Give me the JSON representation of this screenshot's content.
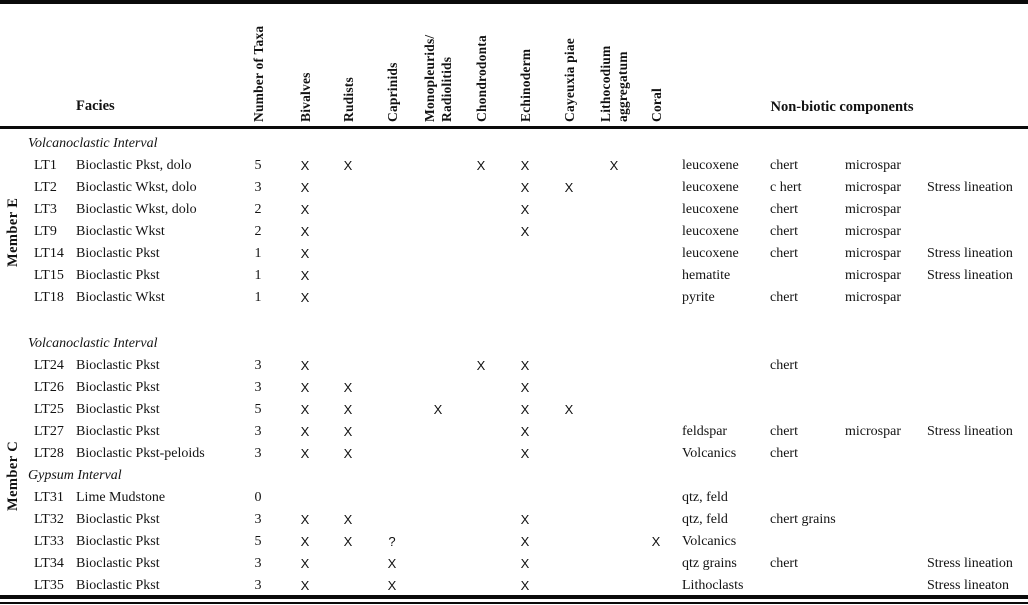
{
  "table": {
    "facies_label": "Facies",
    "nonbiotic_label": "Non-biotic components",
    "mark_symbol": "X",
    "species_columns": [
      "Number of Taxa",
      "Bivalves",
      "Rudists",
      "Caprinids",
      "Monopleurids/\nRadiolitids",
      "Chondrodonta",
      "Echinoderm",
      "Cayeuxia piae",
      "Lithocodium\naggregatum",
      "Coral"
    ],
    "members": [
      {
        "label": "Member E",
        "blocks": [
          {
            "title": "Volcanoclastic Interval",
            "rows": [
              {
                "id": "LT1",
                "facies": "Bioclastic Pkst, dolo",
                "taxa": "5",
                "marks": [
                  "X",
                  "X",
                  "",
                  "",
                  "X",
                  "X",
                  "",
                  "X",
                  ""
                ],
                "nonbiotic": [
                  "leucoxene",
                  "chert",
                  "microspar",
                  ""
                ]
              },
              {
                "id": "LT2",
                "facies": "Bioclastic Wkst, dolo",
                "taxa": "3",
                "marks": [
                  "X",
                  "",
                  "",
                  "",
                  "",
                  "X",
                  "X",
                  "",
                  ""
                ],
                "nonbiotic": [
                  "leucoxene",
                  "c hert",
                  "microspar",
                  "Stress lineation"
                ]
              },
              {
                "id": "LT3",
                "facies": "Bioclastic Wkst, dolo",
                "taxa": "2",
                "marks": [
                  "X",
                  "",
                  "",
                  "",
                  "",
                  "X",
                  "",
                  "",
                  ""
                ],
                "nonbiotic": [
                  "leucoxene",
                  "chert",
                  "microspar",
                  ""
                ]
              },
              {
                "id": "LT9",
                "facies": "Bioclastic Wkst",
                "taxa": "2",
                "marks": [
                  "X",
                  "",
                  "",
                  "",
                  "",
                  "X",
                  "",
                  "",
                  ""
                ],
                "nonbiotic": [
                  "leucoxene",
                  "chert",
                  "microspar",
                  ""
                ]
              },
              {
                "id": "LT14",
                "facies": "Bioclastic Pkst",
                "taxa": "1",
                "marks": [
                  "X",
                  "",
                  "",
                  "",
                  "",
                  "",
                  "",
                  "",
                  ""
                ],
                "nonbiotic": [
                  "leucoxene",
                  "chert",
                  "microspar",
                  "Stress lineation"
                ]
              },
              {
                "id": "LT15",
                "facies": "Bioclastic Pkst",
                "taxa": "1",
                "marks": [
                  "X",
                  "",
                  "",
                  "",
                  "",
                  "",
                  "",
                  "",
                  ""
                ],
                "nonbiotic": [
                  "hematite",
                  "",
                  "microspar",
                  "Stress lineation"
                ]
              },
              {
                "id": "LT18",
                "facies": "Bioclastic Wkst",
                "taxa": "1",
                "marks": [
                  "X",
                  "",
                  "",
                  "",
                  "",
                  "",
                  "",
                  "",
                  ""
                ],
                "nonbiotic": [
                  "pyrite",
                  "chert",
                  "microspar",
                  ""
                ]
              }
            ]
          }
        ]
      },
      {
        "label": "Member C",
        "blocks": [
          {
            "title": "Volcanoclastic Interval",
            "rows": [
              {
                "id": "LT24",
                "facies": "Bioclastic Pkst",
                "taxa": "3",
                "marks": [
                  "X",
                  "",
                  "",
                  "",
                  "X",
                  "X",
                  "",
                  "",
                  ""
                ],
                "nonbiotic": [
                  "",
                  "chert",
                  "",
                  ""
                ]
              },
              {
                "id": "LT26",
                "facies": "Bioclastic Pkst",
                "taxa": "3",
                "marks": [
                  "X",
                  "X",
                  "",
                  "",
                  "",
                  "X",
                  "",
                  "",
                  ""
                ],
                "nonbiotic": [
                  "",
                  "",
                  "",
                  ""
                ]
              },
              {
                "id": "LT25",
                "facies": "Bioclastic Pkst",
                "taxa": "5",
                "marks": [
                  "X",
                  "X",
                  "",
                  "X",
                  "",
                  "X",
                  "X",
                  "",
                  ""
                ],
                "nonbiotic": [
                  "",
                  "",
                  "",
                  ""
                ]
              },
              {
                "id": "LT27",
                "facies": "Bioclastic Pkst",
                "taxa": "3",
                "marks": [
                  "X",
                  "X",
                  "",
                  "",
                  "",
                  "X",
                  "",
                  "",
                  ""
                ],
                "nonbiotic": [
                  "feldspar",
                  "chert",
                  "microspar",
                  "Stress lineation"
                ]
              },
              {
                "id": "LT28",
                "facies": "Bioclastic Pkst-peloids",
                "taxa": "3",
                "marks": [
                  "X",
                  "X",
                  "",
                  "",
                  "",
                  "X",
                  "",
                  "",
                  ""
                ],
                "nonbiotic": [
                  "Volcanics",
                  "chert",
                  "",
                  ""
                ]
              }
            ]
          },
          {
            "title": "Gypsum Interval",
            "rows": [
              {
                "id": "LT31",
                "facies": "Lime Mudstone",
                "taxa": "0",
                "marks": [
                  "",
                  "",
                  "",
                  "",
                  "",
                  "",
                  "",
                  "",
                  ""
                ],
                "nonbiotic": [
                  "qtz, feld",
                  "",
                  "",
                  ""
                ]
              },
              {
                "id": "LT32",
                "facies": "Bioclastic Pkst",
                "taxa": "3",
                "marks": [
                  "X",
                  "X",
                  "",
                  "",
                  "",
                  "X",
                  "",
                  "",
                  ""
                ],
                "nonbiotic": [
                  "qtz, feld",
                  "chert grains",
                  "",
                  ""
                ]
              },
              {
                "id": "LT33",
                "facies": "Bioclastic Pkst",
                "taxa": "5",
                "marks": [
                  "X",
                  "X",
                  "?",
                  "",
                  "",
                  "X",
                  "",
                  "",
                  "X"
                ],
                "nonbiotic": [
                  "Volcanics",
                  "",
                  "",
                  ""
                ]
              },
              {
                "id": "LT34",
                "facies": "Bioclastic Pkst",
                "taxa": "3",
                "marks": [
                  "X",
                  "",
                  "X",
                  "",
                  "",
                  "X",
                  "",
                  "",
                  ""
                ],
                "nonbiotic": [
                  "qtz grains",
                  "chert",
                  "",
                  "Stress lineation"
                ]
              },
              {
                "id": "LT35",
                "facies": "Bioclastic Pkst",
                "taxa": "3",
                "marks": [
                  "X",
                  "",
                  "X",
                  "",
                  "",
                  "X",
                  "",
                  "",
                  ""
                ],
                "nonbiotic": [
                  "Lithoclasts",
                  "",
                  "",
                  "Stress lineaton"
                ]
              }
            ]
          }
        ]
      }
    ]
  }
}
